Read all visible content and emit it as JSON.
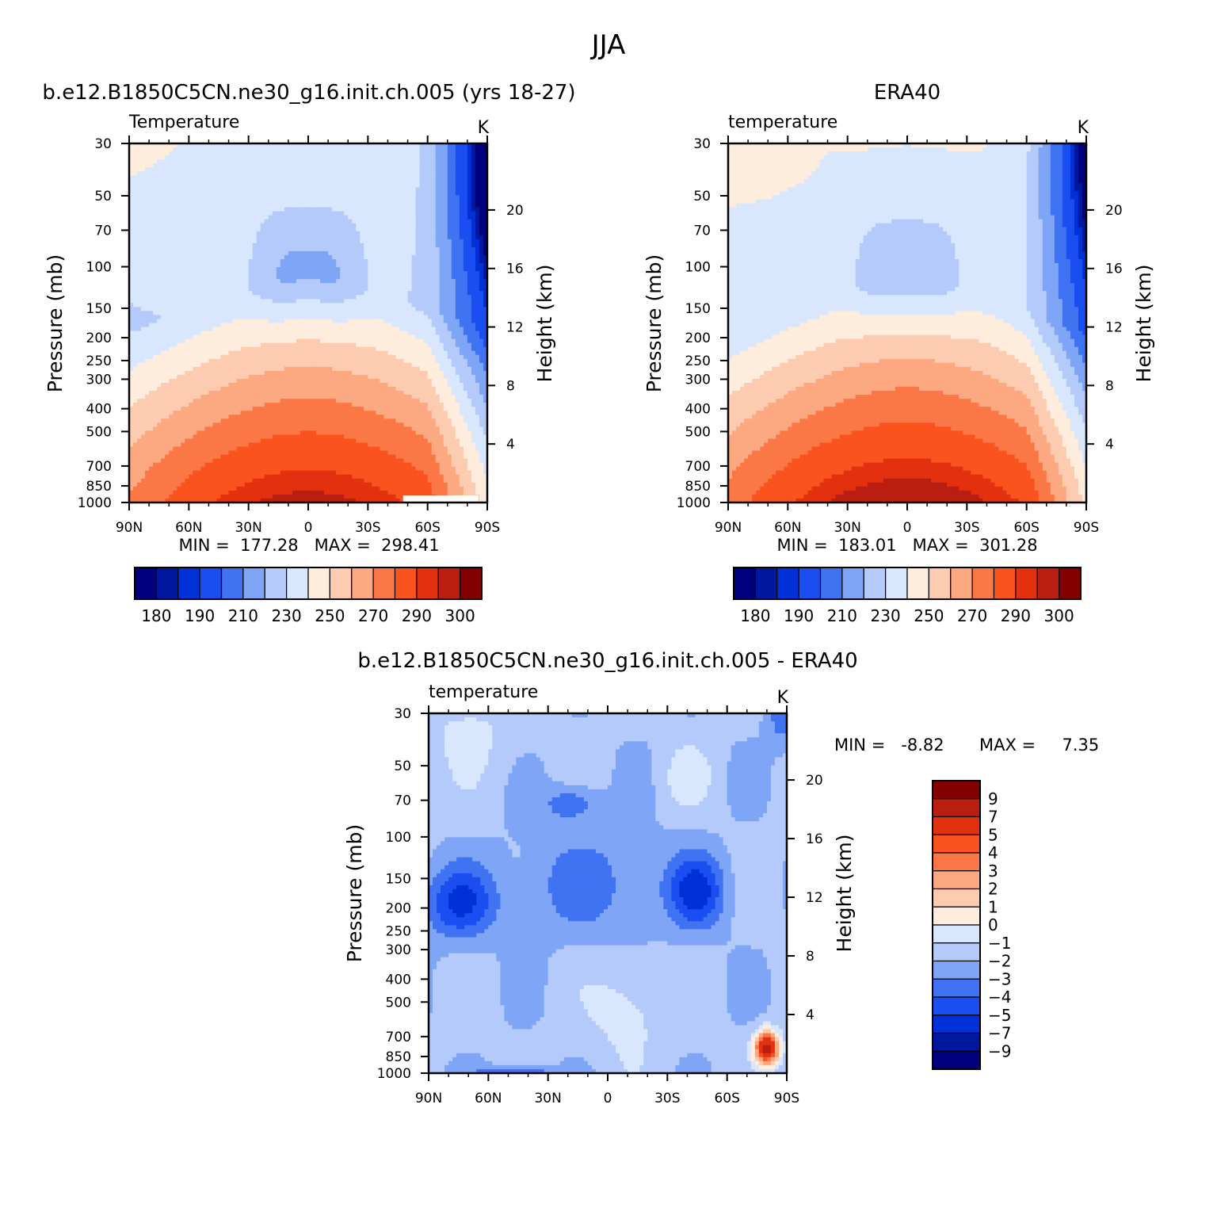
{
  "figure": {
    "title": "JJA"
  },
  "colors": {
    "temp": [
      "#00007f",
      "#0018a0",
      "#0030d8",
      "#1a4ef0",
      "#3f73f2",
      "#7fa5f6",
      "#b3cafb",
      "#d8e7fd",
      "#feecdc",
      "#fdcbb0",
      "#fca880",
      "#fb7846",
      "#fa531e",
      "#e33110",
      "#b91e10",
      "#820000"
    ],
    "diff": [
      "#00007f",
      "#0018a0",
      "#0030d8",
      "#1a4ef0",
      "#3f73f2",
      "#7fa5f6",
      "#b3cafb",
      "#d8e7fd",
      "#feecdc",
      "#fdcbb0",
      "#fca880",
      "#fb7846",
      "#fa531e",
      "#e33110",
      "#b91e10",
      "#820000"
    ]
  },
  "chart_data": [
    {
      "type": "contour",
      "heading": "b.e12.B1850C5CN.ne30_g16.init.ch.005 (yrs 18-27)",
      "left_label": "Temperature",
      "units": "K",
      "ylabel": "Pressure (mb)",
      "ylabel2": "Height (km)",
      "x_ticks": [
        "90N",
        "60N",
        "30N",
        "0",
        "30S",
        "60S",
        "90S"
      ],
      "p_ticks": [
        "30",
        "50",
        "70",
        "100",
        "150",
        "200",
        "250",
        "300",
        "400",
        "500",
        "700",
        "850",
        "1000"
      ],
      "h_ticks": [
        "20",
        "16",
        "12",
        "8",
        "4"
      ],
      "stats": "MIN =  177.28   MAX =  298.41",
      "min": 177.28,
      "max": 298.41,
      "levels": [
        180,
        185,
        190,
        200,
        210,
        220,
        230,
        240,
        250,
        260,
        270,
        280,
        290,
        295,
        300
      ],
      "colorbar_labels": [
        "180",
        "190",
        "210",
        "230",
        "250",
        "270",
        "290",
        "300"
      ]
    },
    {
      "type": "contour",
      "heading": "ERA40",
      "left_label": "temperature",
      "units": "K",
      "ylabel": "Pressure (mb)",
      "ylabel2": "Height (km)",
      "x_ticks": [
        "90N",
        "60N",
        "30N",
        "0",
        "30S",
        "60S",
        "90S"
      ],
      "p_ticks": [
        "30",
        "50",
        "70",
        "100",
        "150",
        "200",
        "250",
        "300",
        "400",
        "500",
        "700",
        "850",
        "1000"
      ],
      "h_ticks": [
        "20",
        "16",
        "12",
        "8",
        "4"
      ],
      "stats": "MIN =  183.01   MAX =  301.28",
      "min": 183.01,
      "max": 301.28,
      "levels": [
        180,
        185,
        190,
        200,
        210,
        220,
        230,
        240,
        250,
        260,
        270,
        280,
        290,
        295,
        300
      ],
      "colorbar_labels": [
        "180",
        "190",
        "210",
        "230",
        "250",
        "270",
        "290",
        "300"
      ]
    },
    {
      "type": "contour",
      "heading": "b.e12.B1850C5CN.ne30_g16.init.ch.005 - ERA40",
      "left_label": "temperature",
      "units": "K",
      "ylabel": "Pressure (mb)",
      "ylabel2": "Height (km)",
      "x_ticks": [
        "90N",
        "60N",
        "30N",
        "0",
        "30S",
        "60S",
        "90S"
      ],
      "p_ticks": [
        "30",
        "50",
        "70",
        "100",
        "150",
        "200",
        "250",
        "300",
        "400",
        "500",
        "700",
        "850",
        "1000"
      ],
      "h_ticks": [
        "20",
        "16",
        "12",
        "8",
        "4"
      ],
      "stats_min": "MIN =   -8.82",
      "stats_max": "MAX =     7.35",
      "min": -8.82,
      "max": 7.35,
      "levels": [
        -9,
        -7,
        -5,
        -4,
        -3,
        -2,
        -1,
        0,
        1,
        2,
        3,
        4,
        5,
        7,
        9
      ],
      "colorbar_labels": [
        "9",
        "7",
        "5",
        "4",
        "3",
        "2",
        "1",
        "0",
        "−1",
        "−2",
        "−3",
        "−4",
        "−5",
        "−7",
        "−9"
      ]
    }
  ]
}
